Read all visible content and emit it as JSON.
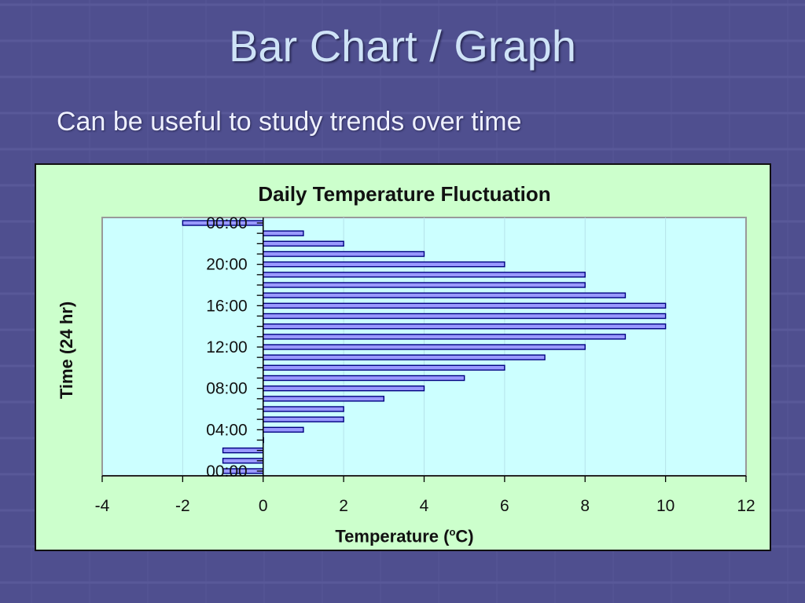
{
  "slide": {
    "title": "Bar Chart / Graph",
    "subtitle": "Can be useful to study trends over time"
  },
  "colors": {
    "background": "#4f4f8f",
    "panel": "#ccffcc",
    "plot_area": "#ccffff",
    "bar_fill": "#9999ff",
    "bar_border": "#000080"
  },
  "chart_data": {
    "type": "bar",
    "orientation": "horizontal",
    "title": "Daily Temperature Fluctuation",
    "xlabel_main": "Temperature (",
    "xlabel_sup": "o",
    "xlabel_end": "C)",
    "ylabel": "Time (24 hr)",
    "xlim": [
      -4,
      12
    ],
    "x_ticks": [
      -4,
      -2,
      0,
      2,
      4,
      6,
      8,
      10,
      12
    ],
    "y_tick_labels": [
      "00:00",
      "04:00",
      "08:00",
      "12:00",
      "16:00",
      "20:00",
      "00:00"
    ],
    "y_tick_hours": [
      0,
      4,
      8,
      12,
      16,
      20,
      24
    ],
    "grid": "vertical",
    "legend": "none",
    "hours": [
      0,
      1,
      2,
      3,
      4,
      5,
      6,
      7,
      8,
      9,
      10,
      11,
      12,
      13,
      14,
      15,
      16,
      17,
      18,
      19,
      20,
      21,
      22,
      23,
      24
    ],
    "values": [
      -1,
      -1,
      -1,
      0,
      1,
      2,
      2,
      3,
      4,
      5,
      6,
      7,
      8,
      9,
      10,
      10,
      10,
      9,
      8,
      8,
      6,
      4,
      2,
      1,
      -2
    ]
  }
}
